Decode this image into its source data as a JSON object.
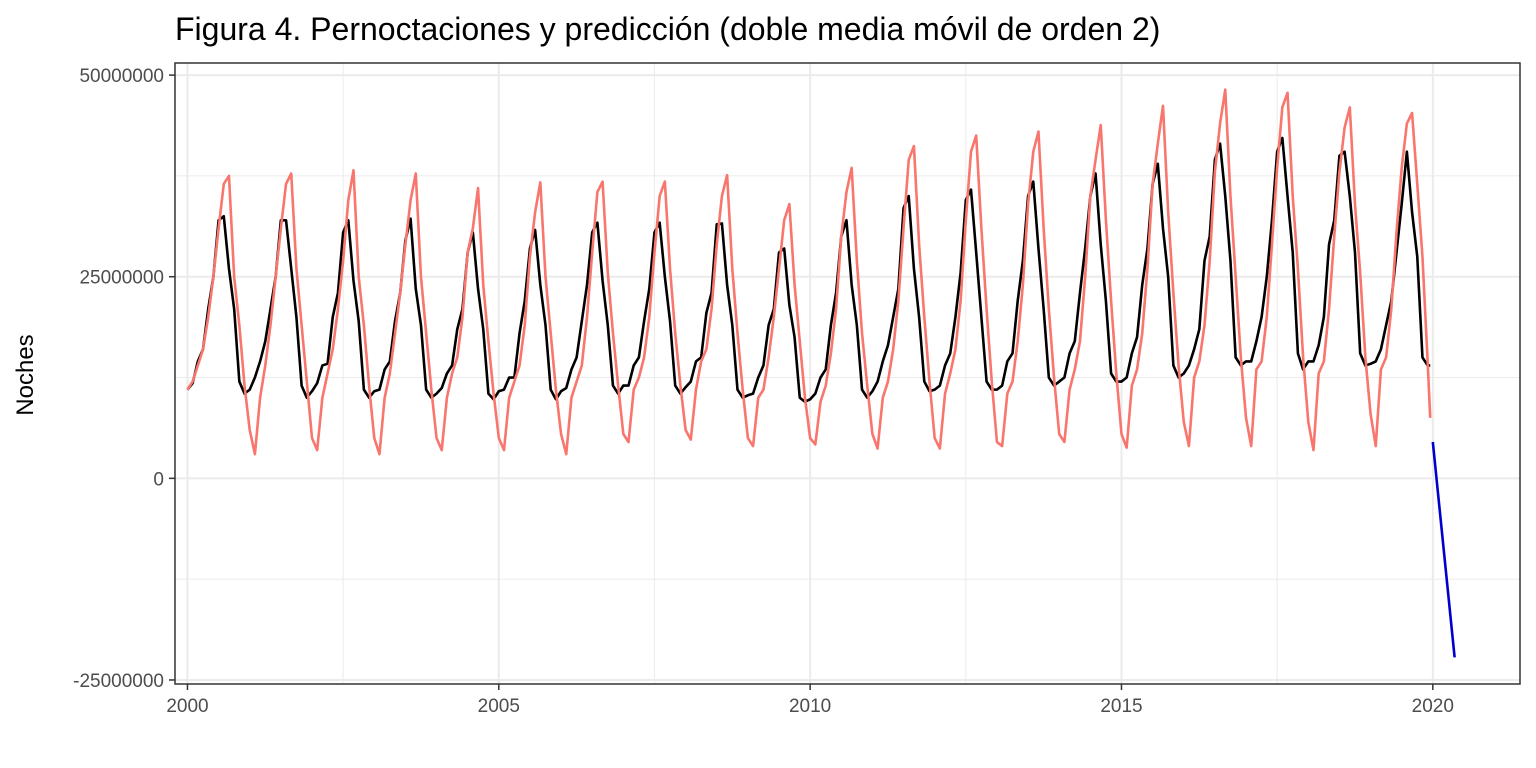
{
  "chart_data": {
    "type": "line",
    "title": "Figura 4. Pernoctaciones y predicción (doble media móvil de orden 2)",
    "xlabel": "",
    "ylabel": "Noches",
    "xlim": [
      1999.8,
      2021.4
    ],
    "ylim": [
      -25500000,
      51500000
    ],
    "x_ticks": [
      2000,
      2005,
      2010,
      2015,
      2020
    ],
    "x_tick_labels": [
      "2000",
      "2005",
      "2010",
      "2015",
      "2020"
    ],
    "y_ticks": [
      -25000000,
      0,
      25000000,
      50000000
    ],
    "y_tick_labels": [
      "-25000000",
      "0",
      "25000000",
      "50000000"
    ],
    "grid": true,
    "legend": "none",
    "colors": {
      "observed": "#f8766d",
      "smoothed": "#000000",
      "forecast": "#0000cc",
      "grid": "#ebebeb",
      "panel_border": "#333333"
    },
    "series": [
      {
        "role": "observed",
        "start_year": 2000,
        "months_per_year": 12,
        "yearly_profiles": [
          [
            11000000,
            12000000,
            14000000,
            16000000,
            20000000,
            25000000,
            31000000,
            36500000,
            37500000,
            25000000,
            19000000,
            11500000
          ],
          [
            6000000,
            3000000,
            10000000,
            14000000,
            19000000,
            25000000,
            31000000,
            36500000,
            37800000,
            26000000,
            19000000,
            12000000
          ],
          [
            5000000,
            3500000,
            10000000,
            13000000,
            16000000,
            21000000,
            27000000,
            34500000,
            38200000,
            25000000,
            19000000,
            11500000
          ],
          [
            5000000,
            3000000,
            10000000,
            13000000,
            18000000,
            23000000,
            29000000,
            34500000,
            37800000,
            25000000,
            18000000,
            11000000
          ],
          [
            5000000,
            3500000,
            10000000,
            13000000,
            15000000,
            20000000,
            28000000,
            31000000,
            36000000,
            24000000,
            17000000,
            10500000
          ],
          [
            5000000,
            3500000,
            10000000,
            12000000,
            14000000,
            19000000,
            27500000,
            33000000,
            36700000,
            25000000,
            18000000,
            11000000
          ],
          [
            5500000,
            3000000,
            10000000,
            12000000,
            14000000,
            20000000,
            28000000,
            35500000,
            36800000,
            25500000,
            18000000,
            11500000
          ],
          [
            5500000,
            4500000,
            11000000,
            12500000,
            15000000,
            20000000,
            28000000,
            35000000,
            36800000,
            26000000,
            18000000,
            11500000
          ],
          [
            6000000,
            4800000,
            11000000,
            14500000,
            16000000,
            21000000,
            29000000,
            35000000,
            37600000,
            26000000,
            18000000,
            11000000
          ],
          [
            5000000,
            4000000,
            10000000,
            11000000,
            15000000,
            20000000,
            26000000,
            32000000,
            34000000,
            24000000,
            17000000,
            10000000
          ],
          [
            5000000,
            4200000,
            9500000,
            11500000,
            15500000,
            21000000,
            30000000,
            35500000,
            38500000,
            27000000,
            18000000,
            11500000
          ],
          [
            5500000,
            3700000,
            10000000,
            12000000,
            16000000,
            22000000,
            31000000,
            39500000,
            41200000,
            29000000,
            20000000,
            12000000
          ],
          [
            5000000,
            3700000,
            10500000,
            13000000,
            16000000,
            22000000,
            32000000,
            40500000,
            42500000,
            31000000,
            21000000,
            12000000
          ],
          [
            4500000,
            4000000,
            10500000,
            12000000,
            17000000,
            24000000,
            34000000,
            40500000,
            43000000,
            31000000,
            21000000,
            12500000
          ],
          [
            5500000,
            4500000,
            11000000,
            13500000,
            17000000,
            25000000,
            35000000,
            39500000,
            43800000,
            32000000,
            22000000,
            13000000
          ],
          [
            5500000,
            3800000,
            11500000,
            13500000,
            18000000,
            26000000,
            36500000,
            41500000,
            46200000,
            33000000,
            23000000,
            14000000
          ],
          [
            7000000,
            4000000,
            12500000,
            14500000,
            19000000,
            27000000,
            38000000,
            44000000,
            48200000,
            35000000,
            25000000,
            15000000
          ],
          [
            7500000,
            4000000,
            13500000,
            14500000,
            20000000,
            29000000,
            38500000,
            46000000,
            47800000,
            35000000,
            26000000,
            15000000
          ],
          [
            7000000,
            3500000,
            13000000,
            14500000,
            21000000,
            30000000,
            38000000,
            43500000,
            46000000,
            34000000,
            25500000,
            15000000
          ],
          [
            8000000,
            4000000,
            13500000,
            15000000,
            21000000,
            30500000,
            38500000,
            44000000,
            45300000,
            36500000,
            27500000,
            14500000
          ]
        ],
        "final_value": 7500000
      },
      {
        "role": "smoothed",
        "start_year": 2000,
        "months_per_year": 12,
        "yearly_profiles": [
          [
            11000000,
            11800000,
            14500000,
            16000000,
            21000000,
            25000000,
            32000000,
            32500000,
            26000000,
            21000000,
            12000000,
            10500000
          ],
          [
            11000000,
            12500000,
            14500000,
            17000000,
            21000000,
            25000000,
            32000000,
            32000000,
            26000000,
            20000000,
            11500000,
            10000000
          ],
          [
            10800000,
            11800000,
            14000000,
            14200000,
            20000000,
            23000000,
            30500000,
            32000000,
            24500000,
            19500000,
            11000000,
            10000000
          ],
          [
            10800000,
            11000000,
            13500000,
            14500000,
            19500000,
            23000000,
            29500000,
            32200000,
            23500000,
            19000000,
            11000000,
            10000000
          ],
          [
            10500000,
            11200000,
            13000000,
            14000000,
            18500000,
            21000000,
            28000000,
            30500000,
            23500000,
            18500000,
            10500000,
            9800000
          ],
          [
            10800000,
            11000000,
            12500000,
            12500000,
            18000000,
            22000000,
            28500000,
            30800000,
            24000000,
            19000000,
            11000000,
            9800000
          ],
          [
            10800000,
            11200000,
            13500000,
            15000000,
            19500000,
            24000000,
            30500000,
            31700000,
            24500000,
            19000000,
            11500000,
            10500000
          ],
          [
            11500000,
            11500000,
            14000000,
            15000000,
            19500000,
            23500000,
            30500000,
            31700000,
            25000000,
            19500000,
            11500000,
            10500000
          ],
          [
            11300000,
            12000000,
            14500000,
            15000000,
            20500000,
            23000000,
            31500000,
            31600000,
            24000000,
            19000000,
            11000000,
            10000000
          ],
          [
            10300000,
            10500000,
            12500000,
            14000000,
            19000000,
            21000000,
            28000000,
            28500000,
            21500000,
            17500000,
            10000000,
            9500000
          ],
          [
            9800000,
            10500000,
            12500000,
            13500000,
            19000000,
            23000000,
            30000000,
            32000000,
            24000000,
            19000000,
            11000000,
            10000000
          ],
          [
            10800000,
            12000000,
            14500000,
            16500000,
            20000000,
            23500000,
            33500000,
            35000000,
            26000000,
            20000000,
            12000000,
            10800000
          ],
          [
            11000000,
            11500000,
            14000000,
            15500000,
            20000000,
            25500000,
            34500000,
            35800000,
            28000000,
            20000000,
            12000000,
            11000000
          ],
          [
            11000000,
            11500000,
            14500000,
            15500000,
            22000000,
            27000000,
            35000000,
            36800000,
            28500000,
            21000000,
            12500000,
            11500000
          ],
          [
            12000000,
            12500000,
            15500000,
            17000000,
            23000000,
            28500000,
            35000000,
            37800000,
            29000000,
            22000000,
            13000000,
            12000000
          ],
          [
            12000000,
            12500000,
            15500000,
            17500000,
            24000000,
            28500000,
            36500000,
            39000000,
            31000000,
            25000000,
            14000000,
            12500000
          ],
          [
            13000000,
            14000000,
            16000000,
            18500000,
            27000000,
            30000000,
            39500000,
            41500000,
            35000000,
            27000000,
            15000000,
            14000000
          ],
          [
            14500000,
            14500000,
            17000000,
            20000000,
            25000000,
            32000000,
            40500000,
            42200000,
            35000000,
            28000000,
            15500000,
            13500000
          ],
          [
            14500000,
            14500000,
            16500000,
            20000000,
            29000000,
            32000000,
            40000000,
            40500000,
            35000000,
            28000000,
            15500000,
            14000000
          ],
          [
            14200000,
            14500000,
            16000000,
            19000000,
            22000000,
            28000000,
            34000000,
            40500000,
            33000000,
            27500000,
            15000000,
            14000000
          ]
        ],
        "final_value": 14000000
      },
      {
        "role": "forecast",
        "x": [
          2020.0,
          2020.35
        ],
        "y": [
          4500000,
          -22200000
        ]
      }
    ]
  }
}
